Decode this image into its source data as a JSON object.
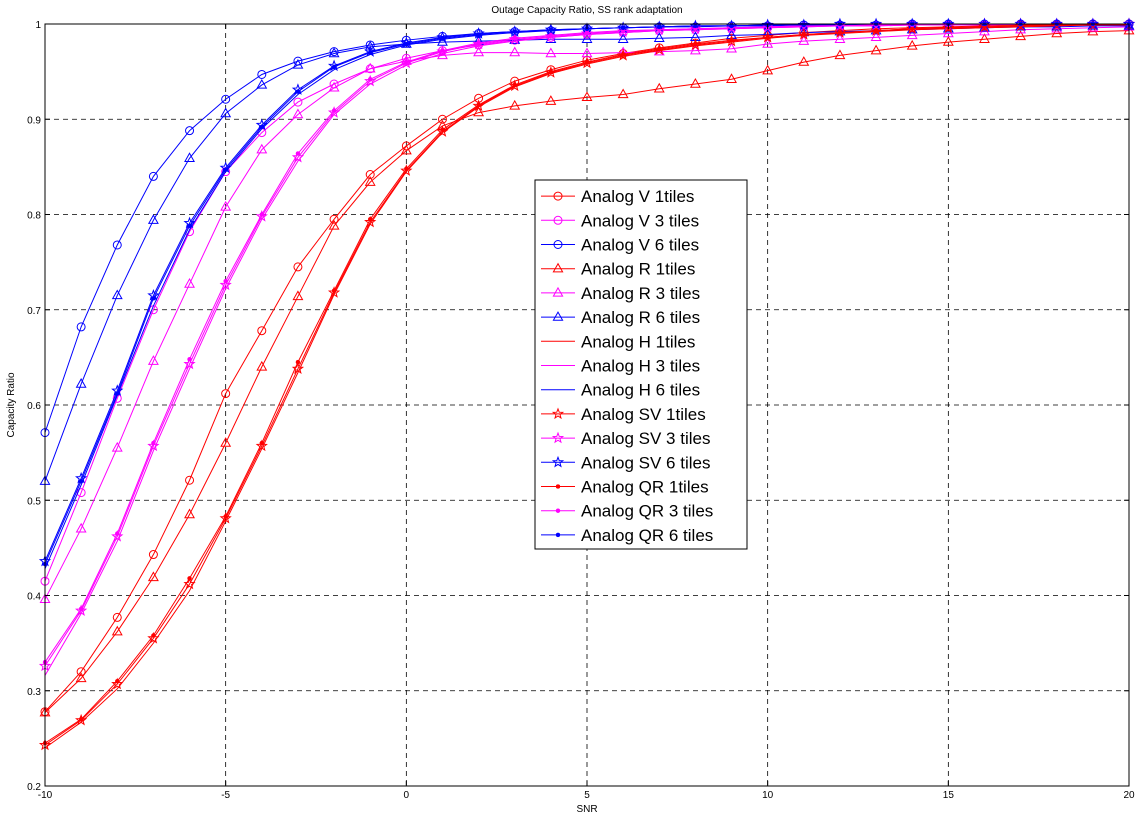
{
  "chart_data": {
    "type": "line",
    "title": "Outage Capacity Ratio, SS rank adaptation",
    "xlabel": "SNR",
    "ylabel": "Capacity Ratio",
    "xlim": [
      -10,
      20
    ],
    "ylim": [
      0.2,
      1.0
    ],
    "grid": true,
    "legend_position": "center",
    "x_ticks": [
      "-10",
      "-5",
      "0",
      "5",
      "10",
      "15",
      "20"
    ],
    "y_ticks": [
      "0.2",
      "0.3",
      "0.4",
      "0.5",
      "0.6",
      "0.7",
      "0.8",
      "0.9",
      "1"
    ],
    "x": [
      -10,
      -9,
      -8,
      -7,
      -6,
      -5,
      -4,
      -3,
      -2,
      -1,
      0,
      1,
      2,
      3,
      4,
      5,
      6,
      7,
      8,
      9,
      10,
      11,
      12,
      13,
      14,
      15,
      16,
      17,
      18,
      19,
      20
    ],
    "colors": {
      "red": "#ff0000",
      "magenta": "#ff00ff",
      "blue": "#0000ff"
    },
    "series": [
      {
        "name": "Analog V 1tiles",
        "color": "red",
        "marker": "circle",
        "values": [
          0.278,
          0.32,
          0.377,
          0.443,
          0.521,
          0.612,
          0.678,
          0.745,
          0.795,
          0.842,
          0.872,
          0.9,
          0.922,
          0.94,
          0.952,
          0.962,
          0.969,
          0.975,
          0.98,
          0.985,
          0.988,
          0.991,
          0.993,
          0.995,
          0.996,
          0.997,
          0.998,
          0.999,
          0.999,
          1.0,
          1.0
        ]
      },
      {
        "name": "Analog V 3 tiles",
        "color": "magenta",
        "marker": "circle",
        "values": [
          0.415,
          0.508,
          0.607,
          0.7,
          0.782,
          0.845,
          0.886,
          0.918,
          0.937,
          0.953,
          0.964,
          0.972,
          0.978,
          0.983,
          0.986,
          0.989,
          0.991,
          0.993,
          0.994,
          0.995,
          0.996,
          0.997,
          0.998,
          0.998,
          0.999,
          0.999,
          0.999,
          1.0,
          1.0,
          1.0,
          1.0
        ]
      },
      {
        "name": "Analog V 6 tiles",
        "color": "blue",
        "marker": "circle",
        "values": [
          0.571,
          0.682,
          0.768,
          0.84,
          0.888,
          0.921,
          0.947,
          0.961,
          0.971,
          0.978,
          0.983,
          0.987,
          0.99,
          0.992,
          0.993,
          0.995,
          0.996,
          0.997,
          0.997,
          0.998,
          0.998,
          0.999,
          0.999,
          0.999,
          1.0,
          1.0,
          1.0,
          1.0,
          1.0,
          1.0,
          1.0
        ]
      },
      {
        "name": "Analog R 1tiles",
        "color": "red",
        "marker": "triangle",
        "values": [
          0.277,
          0.313,
          0.362,
          0.419,
          0.485,
          0.56,
          0.64,
          0.714,
          0.788,
          0.834,
          0.867,
          0.893,
          0.907,
          0.914,
          0.919,
          0.923,
          0.926,
          0.932,
          0.937,
          0.942,
          0.951,
          0.96,
          0.967,
          0.972,
          0.977,
          0.981,
          0.984,
          0.987,
          0.99,
          0.992,
          0.993
        ]
      },
      {
        "name": "Analog R 3 tiles",
        "color": "magenta",
        "marker": "triangle",
        "values": [
          0.396,
          0.47,
          0.555,
          0.646,
          0.727,
          0.808,
          0.868,
          0.905,
          0.933,
          0.953,
          0.961,
          0.967,
          0.97,
          0.97,
          0.969,
          0.969,
          0.97,
          0.971,
          0.972,
          0.974,
          0.979,
          0.982,
          0.984,
          0.986,
          0.988,
          0.99,
          0.992,
          0.994,
          0.995,
          0.996,
          0.997
        ]
      },
      {
        "name": "Analog R 6 tiles",
        "color": "blue",
        "marker": "triangle",
        "values": [
          0.52,
          0.622,
          0.715,
          0.794,
          0.859,
          0.906,
          0.936,
          0.957,
          0.969,
          0.976,
          0.979,
          0.981,
          0.982,
          0.983,
          0.984,
          0.984,
          0.984,
          0.985,
          0.986,
          0.988,
          0.989,
          0.991,
          0.992,
          0.993,
          0.994,
          0.995,
          0.996,
          0.997,
          0.997,
          0.998,
          0.998
        ]
      },
      {
        "name": "Analog H 1tiles",
        "color": "red",
        "marker": "none",
        "values": [
          0.24,
          0.267,
          0.302,
          0.35,
          0.405,
          0.478,
          0.554,
          0.634,
          0.716,
          0.79,
          0.845,
          0.886,
          0.913,
          0.934,
          0.948,
          0.958,
          0.966,
          0.972,
          0.977,
          0.981,
          0.985,
          0.988,
          0.99,
          0.992,
          0.994,
          0.995,
          0.996,
          0.997,
          0.998,
          0.999,
          0.999
        ]
      },
      {
        "name": "Analog H 3 tiles",
        "color": "magenta",
        "marker": "none",
        "values": [
          0.316,
          0.381,
          0.457,
          0.552,
          0.638,
          0.722,
          0.795,
          0.856,
          0.905,
          0.937,
          0.957,
          0.969,
          0.977,
          0.982,
          0.986,
          0.989,
          0.991,
          0.993,
          0.994,
          0.995,
          0.996,
          0.997,
          0.998,
          0.998,
          0.999,
          0.999,
          0.999,
          1.0,
          1.0,
          1.0,
          1.0
        ]
      },
      {
        "name": "Analog H 6 tiles",
        "color": "blue",
        "marker": "none",
        "values": [
          0.428,
          0.516,
          0.61,
          0.704,
          0.784,
          0.845,
          0.89,
          0.926,
          0.952,
          0.968,
          0.978,
          0.984,
          0.988,
          0.991,
          0.993,
          0.995,
          0.996,
          0.997,
          0.998,
          0.998,
          0.999,
          0.999,
          0.999,
          1.0,
          1.0,
          1.0,
          1.0,
          1.0,
          1.0,
          1.0,
          1.0
        ]
      },
      {
        "name": "Analog SV 1tiles",
        "color": "red",
        "marker": "star",
        "values": [
          0.243,
          0.269,
          0.307,
          0.355,
          0.412,
          0.481,
          0.557,
          0.638,
          0.718,
          0.792,
          0.846,
          0.887,
          0.914,
          0.935,
          0.949,
          0.959,
          0.967,
          0.973,
          0.978,
          0.982,
          0.986,
          0.989,
          0.991,
          0.993,
          0.995,
          0.996,
          0.997,
          0.998,
          0.999,
          0.999,
          1.0
        ]
      },
      {
        "name": "Analog SV 3 tiles",
        "color": "magenta",
        "marker": "star",
        "values": [
          0.326,
          0.384,
          0.462,
          0.557,
          0.643,
          0.726,
          0.798,
          0.86,
          0.907,
          0.94,
          0.959,
          0.971,
          0.979,
          0.984,
          0.987,
          0.99,
          0.992,
          0.994,
          0.995,
          0.996,
          0.997,
          0.998,
          0.998,
          0.999,
          0.999,
          0.999,
          1.0,
          1.0,
          1.0,
          1.0,
          1.0
        ]
      },
      {
        "name": "Analog SV 6 tiles",
        "color": "blue",
        "marker": "star",
        "values": [
          0.436,
          0.523,
          0.615,
          0.715,
          0.791,
          0.849,
          0.894,
          0.931,
          0.956,
          0.971,
          0.98,
          0.986,
          0.99,
          0.992,
          0.994,
          0.995,
          0.996,
          0.997,
          0.998,
          0.998,
          0.999,
          0.999,
          1.0,
          1.0,
          1.0,
          1.0,
          1.0,
          1.0,
          1.0,
          1.0,
          1.0
        ]
      },
      {
        "name": "Analog QR 1tiles",
        "color": "red",
        "marker": "dot",
        "values": [
          0.245,
          0.27,
          0.31,
          0.358,
          0.418,
          0.483,
          0.56,
          0.645,
          0.72,
          0.795,
          0.848,
          0.889,
          0.915,
          0.936,
          0.95,
          0.96,
          0.968,
          0.974,
          0.979,
          0.983,
          0.986,
          0.989,
          0.991,
          0.993,
          0.995,
          0.996,
          0.997,
          0.998,
          0.999,
          0.999,
          1.0
        ]
      },
      {
        "name": "Analog QR 3 tiles",
        "color": "magenta",
        "marker": "dot",
        "values": [
          0.33,
          0.386,
          0.465,
          0.56,
          0.648,
          0.73,
          0.8,
          0.864,
          0.909,
          0.942,
          0.96,
          0.972,
          0.98,
          0.985,
          0.988,
          0.991,
          0.993,
          0.994,
          0.995,
          0.996,
          0.997,
          0.998,
          0.998,
          0.999,
          0.999,
          0.999,
          1.0,
          1.0,
          1.0,
          1.0,
          1.0
        ]
      },
      {
        "name": "Analog QR 6 tiles",
        "color": "blue",
        "marker": "dot",
        "values": [
          0.433,
          0.52,
          0.612,
          0.712,
          0.788,
          0.847,
          0.892,
          0.929,
          0.955,
          0.97,
          0.979,
          0.985,
          0.989,
          0.992,
          0.994,
          0.995,
          0.996,
          0.997,
          0.998,
          0.998,
          0.999,
          0.999,
          1.0,
          1.0,
          1.0,
          1.0,
          1.0,
          1.0,
          1.0,
          1.0,
          1.0
        ]
      }
    ]
  }
}
